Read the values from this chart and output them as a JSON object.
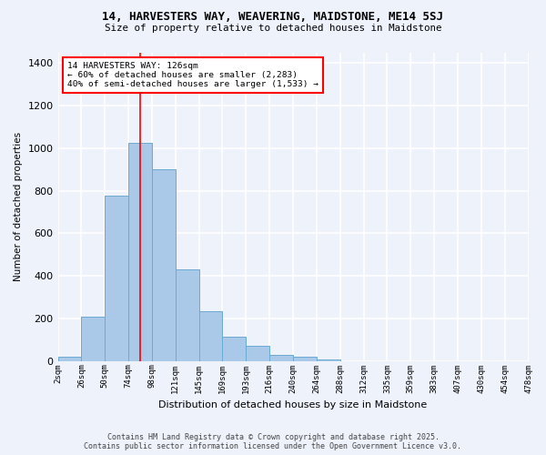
{
  "title_line1": "14, HARVESTERS WAY, WEAVERING, MAIDSTONE, ME14 5SJ",
  "title_line2": "Size of property relative to detached houses in Maidstone",
  "xlabel": "Distribution of detached houses by size in Maidstone",
  "ylabel": "Number of detached properties",
  "bin_edges": [
    0,
    1,
    2,
    3,
    4,
    5,
    6,
    7,
    8,
    9,
    10,
    11,
    12,
    13,
    14,
    15,
    16,
    17,
    18,
    19,
    20
  ],
  "tick_labels": [
    "2sqm",
    "26sqm",
    "50sqm",
    "74sqm",
    "98sqm",
    "121sqm",
    "145sqm",
    "169sqm",
    "193sqm",
    "216sqm",
    "240sqm",
    "264sqm",
    "288sqm",
    "312sqm",
    "335sqm",
    "359sqm",
    "383sqm",
    "407sqm",
    "430sqm",
    "454sqm",
    "478sqm"
  ],
  "bin_heights": [
    20,
    210,
    775,
    1025,
    900,
    430,
    235,
    115,
    70,
    30,
    20,
    5,
    0,
    0,
    0,
    0,
    0,
    0,
    0,
    0
  ],
  "bar_color": "#aac9e8",
  "bar_edge_color": "#6aaad4",
  "vline_x": 3.5,
  "vline_color": "red",
  "annotation_text": "14 HARVESTERS WAY: 126sqm\n← 60% of detached houses are smaller (2,283)\n40% of semi-detached houses are larger (1,533) →",
  "annotation_box_color": "white",
  "annotation_box_edge": "red",
  "ylim": [
    0,
    1450
  ],
  "yticks": [
    0,
    200,
    400,
    600,
    800,
    1000,
    1200,
    1400
  ],
  "footer_line1": "Contains HM Land Registry data © Crown copyright and database right 2025.",
  "footer_line2": "Contains public sector information licensed under the Open Government Licence v3.0.",
  "bg_color": "#eef2fb",
  "grid_color": "white"
}
